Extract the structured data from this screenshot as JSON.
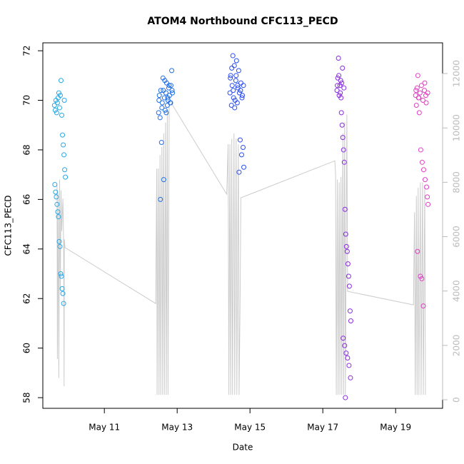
{
  "chart_data": {
    "type": "scatter",
    "title": "ATOM4 Northbound CFC113_PECD",
    "x_label": "Date",
    "y_label": "CFC113_PECD",
    "xlim": [
      9.31,
      20.29
    ],
    "xticks": [
      {
        "value": 11,
        "label": "May 11"
      },
      {
        "value": 13,
        "label": "May 13"
      },
      {
        "value": 15,
        "label": "May 15"
      },
      {
        "value": 17,
        "label": "May 17"
      },
      {
        "value": 19,
        "label": "May 19"
      }
    ],
    "ylim": [
      57.57,
      72.32
    ],
    "yticks": [
      58,
      60,
      62,
      64,
      66,
      68,
      70,
      72
    ],
    "y2lim": [
      -315,
      13130
    ],
    "y2ticks": [
      0,
      2000,
      4000,
      6000,
      8000,
      10000,
      12000
    ],
    "y2_color": "#bbbbbb",
    "series": [
      {
        "type": "line",
        "axis": "y2",
        "color": "#cccccc",
        "x": [
          9.7,
          9.71,
          9.73,
          9.75,
          9.77,
          9.79,
          9.81,
          9.83,
          9.86,
          9.88,
          9.895,
          9.9,
          9.92,
          12.41,
          12.44,
          12.45,
          12.48,
          12.5,
          12.53,
          12.55,
          12.58,
          12.6,
          12.63,
          12.65,
          12.68,
          12.7,
          12.73,
          12.75,
          12.78,
          12.8,
          14.36,
          14.4,
          14.42,
          14.45,
          14.47,
          14.5,
          14.52,
          14.56,
          14.58,
          14.62,
          14.64,
          14.68,
          14.7,
          14.73,
          14.75,
          17.33,
          17.35,
          17.37,
          17.4,
          17.42,
          17.45,
          17.47,
          17.5,
          17.52,
          17.55,
          17.57,
          17.6,
          17.62,
          17.66,
          17.68,
          19.49,
          19.52,
          19.54,
          19.57,
          19.59,
          19.62,
          19.64,
          19.68,
          19.7,
          19.74,
          19.76,
          19.8,
          19.82
        ],
        "values": [
          7900,
          1500,
          7600,
          800,
          8100,
          4000,
          7700,
          6200,
          7400,
          5800,
          500,
          5900,
          5600,
          3540,
          8500,
          180,
          8500,
          180,
          9000,
          180,
          9300,
          180,
          9800,
          180,
          10200,
          180,
          10600,
          180,
          10900,
          11000,
          7560,
          9400,
          180,
          9400,
          180,
          9600,
          180,
          9800,
          180,
          9600,
          180,
          9400,
          180,
          3800,
          7430,
          8790,
          8300,
          180,
          8100,
          180,
          8000,
          180,
          8200,
          180,
          9800,
          180,
          10200,
          180,
          10500,
          3990,
          3490,
          6900,
          180,
          7500,
          180,
          7800,
          180,
          8000,
          180,
          8000,
          180,
          7900,
          180
        ]
      },
      {
        "type": "scatter",
        "color": "#29a8e6",
        "x": [
          9.63,
          9.65,
          9.67,
          9.69,
          9.71,
          9.73,
          9.75,
          9.77,
          9.79,
          9.81,
          9.83,
          9.85,
          9.87,
          9.89,
          9.91,
          9.93,
          9.64,
          9.66,
          9.68,
          9.7,
          9.72,
          9.74,
          9.76,
          9.78,
          9.8,
          9.82,
          9.84,
          9.86,
          9.88,
          9.9
        ],
        "values": [
          69.8,
          69.6,
          70.0,
          69.5,
          69.9,
          70.1,
          70.3,
          69.7,
          70.2,
          70.8,
          69.4,
          68.6,
          68.2,
          67.8,
          67.2,
          66.9,
          66.6,
          66.3,
          66.1,
          65.8,
          65.5,
          65.3,
          64.3,
          64.1,
          63.0,
          62.9,
          62.4,
          62.2,
          61.8,
          70.0
        ]
      },
      {
        "type": "scatter",
        "color": "#1f6fe6",
        "x": [
          12.49,
          12.51,
          12.53,
          12.55,
          12.57,
          12.59,
          12.61,
          12.63,
          12.65,
          12.67,
          12.69,
          12.71,
          12.73,
          12.75,
          12.77,
          12.79,
          12.81,
          12.83,
          12.85,
          12.87,
          12.5,
          12.54,
          12.58,
          12.62,
          12.66,
          12.7,
          12.74,
          12.78,
          12.82,
          12.86
        ],
        "values": [
          69.5,
          70.2,
          69.3,
          70.4,
          68.3,
          69.9,
          70.9,
          66.8,
          70.1,
          69.6,
          70.3,
          70.7,
          69.8,
          70.0,
          70.5,
          70.2,
          69.9,
          70.6,
          71.2,
          70.3,
          70.0,
          66.0,
          69.7,
          70.4,
          70.8,
          69.5,
          70.1,
          70.6,
          69.9,
          70.4
        ]
      },
      {
        "type": "scatter",
        "color": "#2a4df0",
        "x": [
          14.45,
          14.47,
          14.49,
          14.51,
          14.53,
          14.55,
          14.57,
          14.59,
          14.61,
          14.63,
          14.65,
          14.67,
          14.69,
          14.71,
          14.73,
          14.75,
          14.77,
          14.79,
          14.81,
          14.83,
          14.46,
          14.5,
          14.54,
          14.58,
          14.62,
          14.66,
          14.7,
          14.74,
          14.78,
          14.82
        ],
        "values": [
          70.3,
          71.0,
          69.8,
          70.6,
          71.8,
          70.1,
          71.4,
          70.0,
          70.8,
          71.6,
          69.9,
          70.5,
          71.2,
          70.3,
          68.4,
          70.7,
          67.8,
          70.2,
          68.1,
          67.3,
          70.9,
          71.3,
          70.4,
          69.7,
          71.0,
          70.6,
          67.1,
          70.4,
          70.1,
          70.6
        ]
      },
      {
        "type": "scatter",
        "color": "#8a2be2",
        "x": [
          17.39,
          17.41,
          17.43,
          17.45,
          17.47,
          17.49,
          17.51,
          17.53,
          17.55,
          17.57,
          17.59,
          17.61,
          17.63,
          17.65,
          17.67,
          17.69,
          17.71,
          17.73,
          17.75,
          17.77,
          17.4,
          17.44,
          17.48,
          17.52,
          17.56,
          17.6,
          17.64,
          17.68,
          17.72,
          17.76,
          17.62,
          17.58,
          17.54,
          17.5
        ],
        "values": [
          70.4,
          70.9,
          71.7,
          70.2,
          70.6,
          70.8,
          69.5,
          69.0,
          68.5,
          68.0,
          67.5,
          65.6,
          64.6,
          64.1,
          63.9,
          63.4,
          62.9,
          62.5,
          61.5,
          61.1,
          70.6,
          71.0,
          70.3,
          70.7,
          60.4,
          60.1,
          59.8,
          59.6,
          59.3,
          58.8,
          58.0,
          70.5,
          71.3,
          70.1
        ]
      },
      {
        "type": "scatter",
        "color": "#e13fc4",
        "x": [
          19.55,
          19.57,
          19.59,
          19.61,
          19.63,
          19.65,
          19.67,
          19.69,
          19.71,
          19.73,
          19.75,
          19.77,
          19.79,
          19.81,
          19.83,
          19.85,
          19.87,
          19.89,
          19.56,
          19.6,
          19.64,
          19.68,
          19.72,
          19.76,
          19.8,
          19.84,
          19.88
        ],
        "values": [
          70.2,
          69.8,
          70.5,
          71.0,
          70.1,
          69.5,
          70.3,
          68.0,
          70.6,
          67.5,
          70.0,
          67.2,
          70.4,
          66.8,
          70.2,
          66.5,
          66.1,
          65.8,
          70.4,
          63.9,
          70.1,
          62.9,
          62.8,
          61.7,
          70.7,
          69.9,
          70.3
        ]
      }
    ]
  }
}
